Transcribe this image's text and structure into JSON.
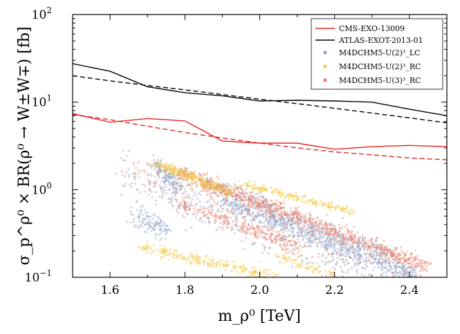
{
  "chart_data": {
    "type": "scatter",
    "title": "",
    "xlabel": "m_ρ⁰ [TeV]",
    "ylabel": "σ_p^ρ⁰ × BR(ρ⁰ → W±W∓) [fb]",
    "xlim": [
      1.5,
      2.5
    ],
    "ylim": [
      0.1,
      100
    ],
    "yscale": "log",
    "x_ticks": [
      1.6,
      1.8,
      2.0,
      2.2,
      2.4
    ],
    "x_tick_labels": [
      "1.6",
      "1.8",
      "2.0",
      "2.2",
      "2.4"
    ],
    "y_ticks": [
      0.1,
      1,
      10,
      100
    ],
    "y_tick_labels": [
      "10",
      "10",
      "10",
      "10"
    ],
    "y_tick_exponents": [
      "−1",
      "0",
      "1",
      "2"
    ],
    "legend": {
      "position": "top-right",
      "entries": [
        {
          "label": "CMS-EXO-13009",
          "kind": "line",
          "color": "#e8211f"
        },
        {
          "label": "ATLAS-EXOT-2013-01",
          "kind": "line",
          "color": "#000000"
        },
        {
          "label": "M4DCHM5-U(2)³_LC",
          "kind": "marker",
          "color": "#8a9fc8"
        },
        {
          "label": "M4DCHM5-U(2)³_RC",
          "kind": "marker",
          "color": "#f5c842"
        },
        {
          "label": "M4DCHM5-U(3)³_RC",
          "kind": "marker",
          "color": "#e8806a"
        }
      ]
    },
    "lines": [
      {
        "name": "CMS-EXO-13009 observed",
        "color": "#e8211f",
        "style": "solid",
        "x": [
          1.5,
          1.6,
          1.7,
          1.8,
          1.9,
          2.0,
          2.1,
          2.2,
          2.3,
          2.4,
          2.5
        ],
        "y": [
          7.4,
          5.9,
          6.5,
          6.1,
          3.6,
          3.4,
          3.4,
          2.9,
          3.1,
          3.2,
          3.1
        ]
      },
      {
        "name": "CMS-EXO-13009 expected",
        "color": "#e8211f",
        "style": "dashed",
        "x": [
          1.5,
          1.6,
          1.7,
          1.8,
          1.9,
          2.0,
          2.1,
          2.2,
          2.3,
          2.4,
          2.5
        ],
        "y": [
          7.2,
          6.3,
          5.3,
          4.5,
          3.9,
          3.4,
          3.0,
          2.7,
          2.5,
          2.3,
          2.2
        ]
      },
      {
        "name": "ATLAS-EXOT-2013-01 observed",
        "color": "#000000",
        "style": "solid",
        "x": [
          1.5,
          1.6,
          1.7,
          1.8,
          1.9,
          2.0,
          2.1,
          2.2,
          2.3,
          2.4,
          2.5
        ],
        "y": [
          27.5,
          22.5,
          15.0,
          12.8,
          11.8,
          10.3,
          10.5,
          10.3,
          10.0,
          8.3,
          7.0
        ]
      },
      {
        "name": "ATLAS-EXOT-2013-01 expected",
        "color": "#000000",
        "style": "dashed",
        "x": [
          1.5,
          1.6,
          1.7,
          1.8,
          1.9,
          2.0,
          2.1,
          2.2,
          2.3,
          2.4,
          2.5
        ],
        "y": [
          20.0,
          17.5,
          15.5,
          13.8,
          12.2,
          10.8,
          9.6,
          8.5,
          7.5,
          6.6,
          5.8
        ]
      }
    ],
    "scatter_series": [
      {
        "name": "M4DCHM5-U(2)³_LC",
        "color": "#8a9fc8",
        "bands": [
          {
            "x": [
              1.72,
              1.78
            ],
            "y": [
              2.0,
              1.1
            ],
            "width": 0.1,
            "n": 140
          },
          {
            "x": [
              1.67,
              1.75
            ],
            "y": [
              0.5,
              0.35
            ],
            "width": 0.12,
            "n": 120
          },
          {
            "x": [
              1.9,
              2.42
            ],
            "y": [
              0.75,
              0.1
            ],
            "width": 0.12,
            "n": 700
          },
          {
            "x": [
              1.85,
              2.35
            ],
            "y": [
              1.2,
              0.18
            ],
            "width": 0.1,
            "n": 350
          },
          {
            "x": [
              1.62,
              2.3
            ],
            "y": [
              1.6,
              0.1
            ],
            "width": 0.25,
            "n": 300
          }
        ]
      },
      {
        "name": "M4DCHM5-U(2)³_RC",
        "color": "#f5c842",
        "bands": [
          {
            "x": [
              1.72,
              1.93
            ],
            "y": [
              2.0,
              0.9
            ],
            "width": 0.06,
            "n": 280
          },
          {
            "x": [
              1.95,
              2.25
            ],
            "y": [
              1.2,
              0.55
            ],
            "width": 0.04,
            "n": 220
          },
          {
            "x": [
              1.68,
              2.05
            ],
            "y": [
              0.22,
              0.1
            ],
            "width": 0.07,
            "n": 280
          },
          {
            "x": [
              2.05,
              2.2
            ],
            "y": [
              0.18,
              0.1
            ],
            "width": 0.05,
            "n": 80
          }
        ]
      },
      {
        "name": "M4DCHM5-U(3)³_RC",
        "color": "#e8806a",
        "bands": [
          {
            "x": [
              1.78,
              2.45
            ],
            "y": [
              1.6,
              0.13
            ],
            "width": 0.1,
            "n": 900
          },
          {
            "x": [
              1.78,
              2.1
            ],
            "y": [
              0.7,
              0.22
            ],
            "width": 0.1,
            "n": 260
          },
          {
            "x": [
              1.62,
              2.4
            ],
            "y": [
              1.8,
              0.1
            ],
            "width": 0.3,
            "n": 250
          }
        ]
      }
    ]
  }
}
